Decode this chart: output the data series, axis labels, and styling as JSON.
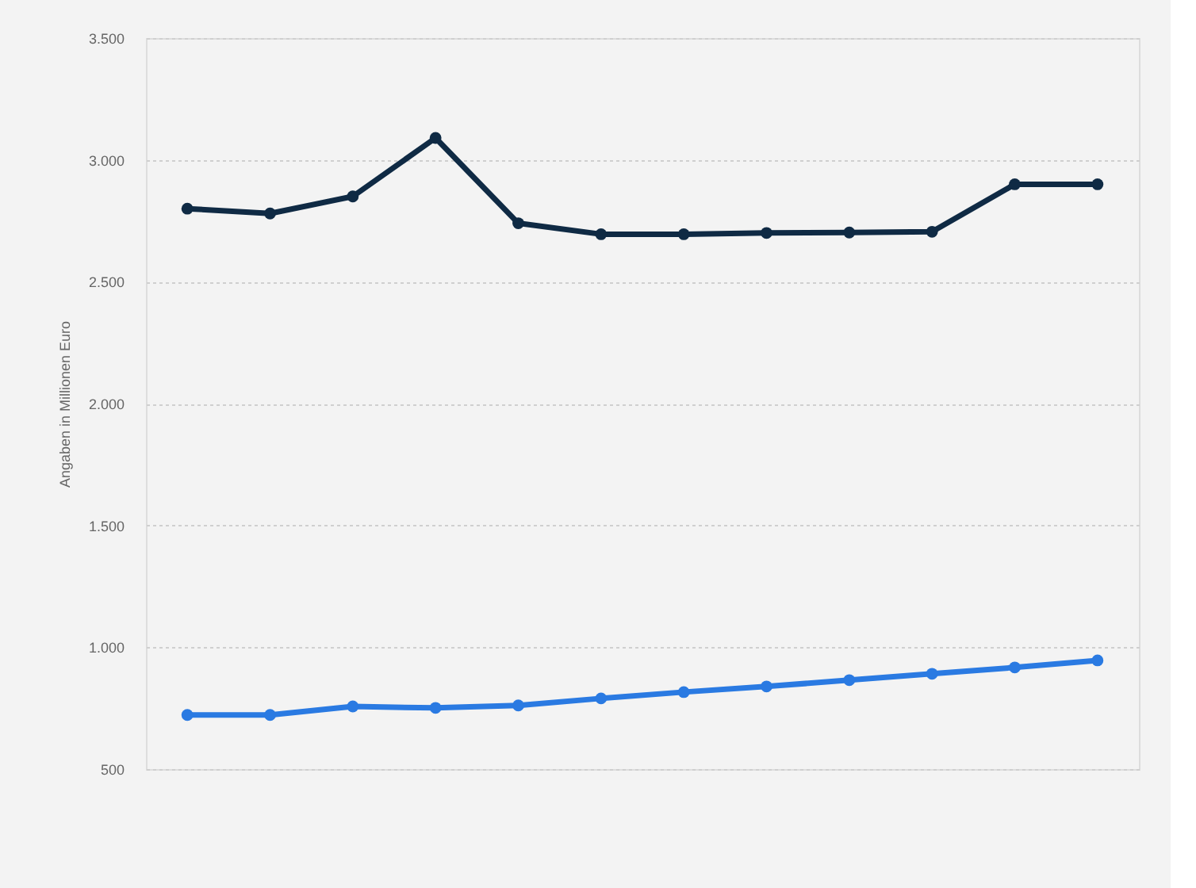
{
  "chart_data": {
    "type": "line",
    "ylabel": "Angaben in Millionen Euro",
    "categories": [
      null,
      null,
      null,
      null,
      null,
      null,
      null,
      null,
      null,
      null,
      null,
      null
    ],
    "series": [
      {
        "color": "#0f2a44",
        "values": [
          2800,
          2780,
          2850,
          3090,
          2740,
          2695,
          2695,
          2700,
          2702,
          2705,
          2900,
          2900
        ]
      },
      {
        "color": "#2a7ae2",
        "values": [
          722,
          722,
          757,
          751,
          761,
          790,
          816,
          839,
          865,
          891,
          917,
          946
        ]
      }
    ],
    "ylim": [
      500,
      3500
    ],
    "yticks": [
      {
        "value": 500,
        "label": "500"
      },
      {
        "value": 1000,
        "label": "1.000"
      },
      {
        "value": 1500,
        "label": "1.500"
      },
      {
        "value": 2000,
        "label": "2.000"
      },
      {
        "value": 2500,
        "label": "2.500"
      },
      {
        "value": 3000,
        "label": "3.000"
      },
      {
        "value": 3500,
        "label": "3.500"
      }
    ],
    "grid": "y",
    "tick_labels": "y",
    "marker": "circle",
    "line_style": "solid"
  }
}
